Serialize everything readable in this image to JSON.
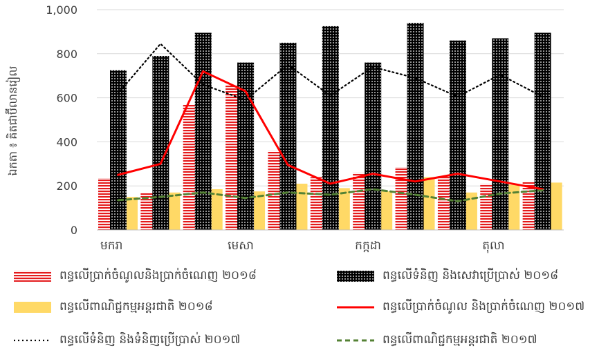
{
  "chart_data": {
    "type": "bar",
    "ylabel": "ឯកតា ៖ គិតជាប៊ីលានរៀល",
    "ylim": [
      0,
      1000
    ],
    "yticks": [
      0,
      200,
      400,
      600,
      800,
      1000
    ],
    "ytick_labels": [
      "0",
      "200",
      "400",
      "600",
      "800",
      "1,000"
    ],
    "xtick_labels": [
      "មករា",
      "មេសា",
      "កក្កដា",
      "តុលា"
    ],
    "xtick_positions": [
      0,
      3,
      6,
      9
    ],
    "num_categories": 11,
    "grid": true,
    "legend_position": "bottom",
    "series": [
      {
        "name": "ពន្ធលើប្រាក់ចំណូលនិងប្រាក់ចំណេញ ២០១៨",
        "kind": "bar",
        "color": "#e41a1c",
        "pattern": "horizontal-stripes",
        "values": [
          235,
          170,
          570,
          660,
          360,
          240,
          260,
          285,
          245,
          210,
          220
        ]
      },
      {
        "name": "ពន្ធលើពាណិជ្ជកម្មអន្តរជាតិ ២០១៨",
        "kind": "bar",
        "color": "#ffd966",
        "pattern": "solid",
        "values": [
          150,
          170,
          185,
          175,
          210,
          190,
          175,
          240,
          170,
          205,
          215
        ]
      },
      {
        "name": "ពន្ធលើទំនិញ និងសេវាប្រើប្រាស់ ២០១៨",
        "kind": "bar",
        "color": "#000000",
        "pattern": "dots",
        "values": [
          725,
          790,
          895,
          760,
          850,
          925,
          760,
          940,
          860,
          870,
          895
        ]
      },
      {
        "name": "ពន្ធលើប្រាក់ចំណូល និងប្រាក់ចំណេញ ២០១៧",
        "kind": "line",
        "color": "#ff0000",
        "dash": "solid",
        "values": [
          250,
          300,
          720,
          630,
          295,
          210,
          255,
          220,
          255,
          220,
          185
        ]
      },
      {
        "name": "ពន្ធលើទំនិញ និងទំនិញប្រើប្រាស់ ២០១៧",
        "kind": "line",
        "color": "#000000",
        "dash": "dotted",
        "values": [
          620,
          845,
          660,
          590,
          750,
          610,
          740,
          690,
          605,
          705,
          605
        ]
      },
      {
        "name": "ពន្ធលើពាណិជ្ជកម្មអន្តរជាតិ ២០១៧",
        "kind": "line",
        "color": "#548235",
        "dash": "dashed",
        "values": [
          135,
          150,
          170,
          145,
          170,
          160,
          185,
          160,
          130,
          165,
          180
        ]
      }
    ]
  }
}
